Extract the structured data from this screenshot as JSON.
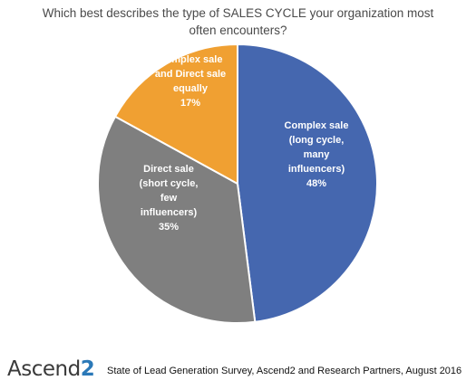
{
  "title_line1": "Which best describes the type of SALES CYCLE your organization most",
  "title_line2": "often encounters?",
  "chart_data": {
    "type": "pie",
    "title": "Which best describes the type of SALES CYCLE your organization most often encounters?",
    "slices": [
      {
        "label_lines": [
          "Complex sale",
          "(long cycle,",
          "many",
          "influencers)"
        ],
        "value": 48,
        "value_label": "48%",
        "color": "#4567af"
      },
      {
        "label_lines": [
          "Direct sale",
          "(short cycle,",
          "few",
          "influencers)"
        ],
        "value": 35,
        "value_label": "35%",
        "color": "#7f7f7f"
      },
      {
        "label_lines": [
          "Complex sale",
          "and Direct sale",
          "equally"
        ],
        "value": 17,
        "value_label": "17%",
        "color": "#f0a032"
      }
    ],
    "start": "12 o'clock",
    "direction": "clockwise",
    "legend": "none"
  },
  "footer": {
    "logo_text": "Ascend",
    "logo_mark": "2",
    "source": "State of Lead Generation Survey, Ascend2 and Research Partners, August 2016"
  }
}
